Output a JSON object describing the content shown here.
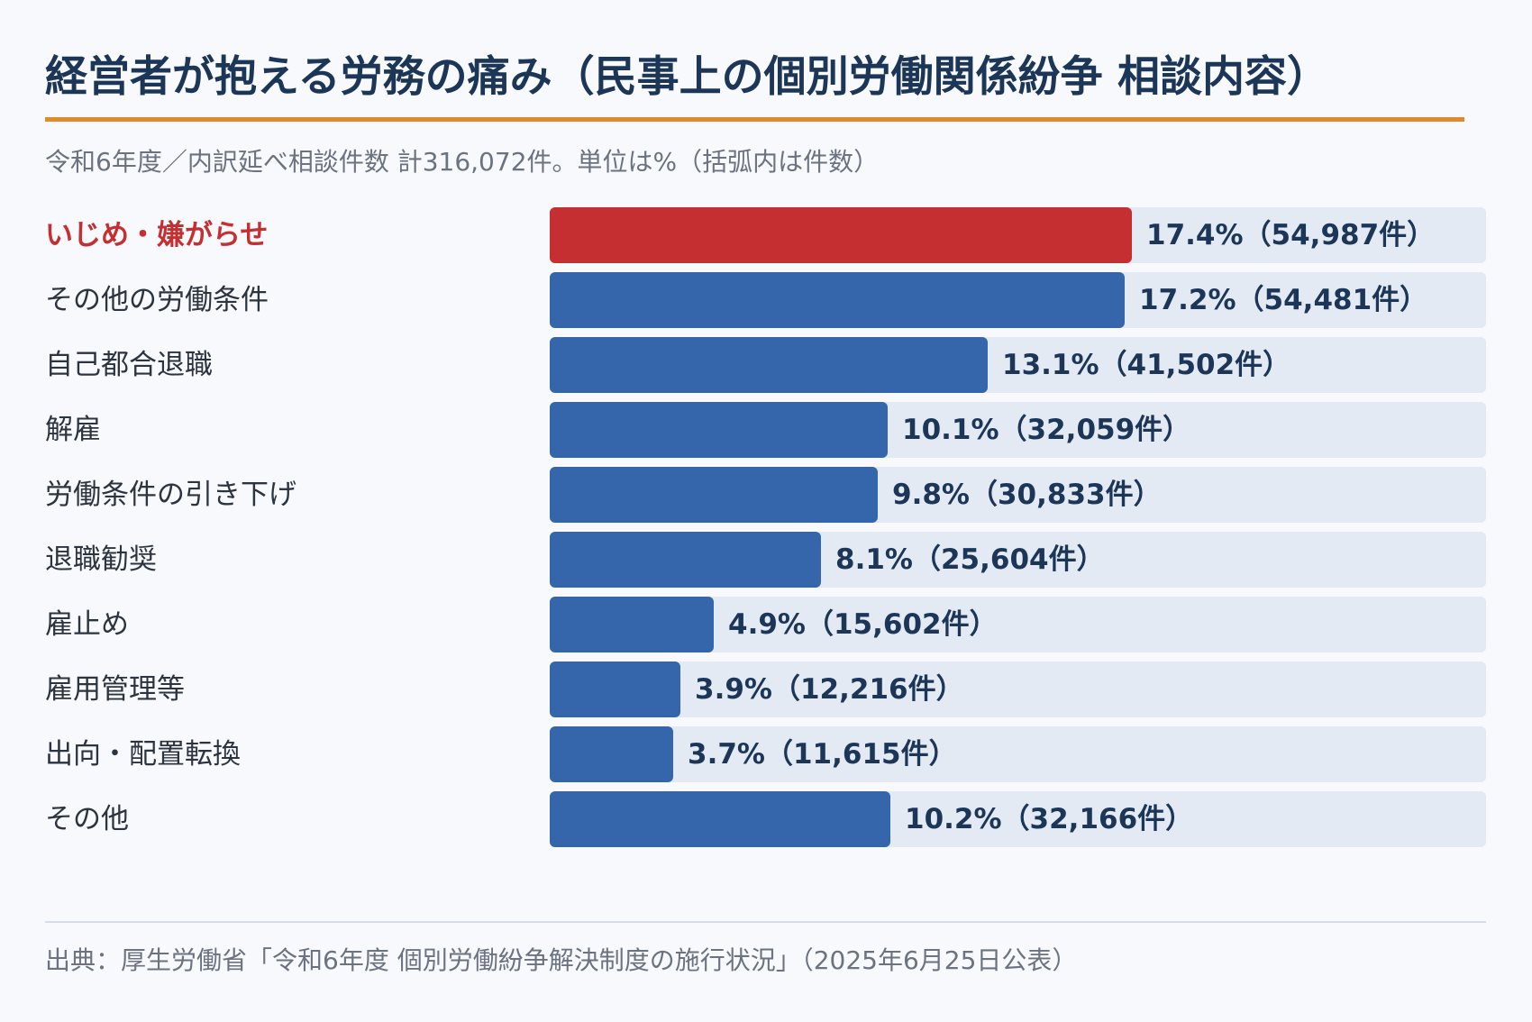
{
  "header": {
    "title": "経営者が抱える労務の痛み（民事上の個別労働関係紛争 相談内容）",
    "subtitle": "令和6年度／内訳延べ相談件数 計316,072件。単位は%（括弧内は件数）"
  },
  "footer": {
    "source": "出典：厚生労働省「令和6年度 個別労働紛争解決制度の施行状況」（2025年6月25日公表）"
  },
  "colors": {
    "highlight": "#c62f31",
    "bar": "#3566ac",
    "track": "#e3eaf3",
    "accent_rule": "#e08a2c"
  },
  "chart_data": {
    "type": "bar",
    "orientation": "horizontal",
    "title": "経営者が抱える労務の痛み（民事上の個別労働関係紛争 相談内容）",
    "unit": "%",
    "xlim": [
      0,
      28
    ],
    "grid": false,
    "legend": "none",
    "categories": [
      "いじめ・嫌がらせ",
      "その他の労働条件",
      "自己都合退職",
      "解雇",
      "労働条件の引き下げ",
      "退職勧奨",
      "雇止め",
      "雇用管理等",
      "出向・配置転換",
      "その他"
    ],
    "values": [
      17.4,
      17.2,
      13.1,
      10.1,
      9.8,
      8.1,
      4.9,
      3.9,
      3.7,
      10.2
    ],
    "counts": [
      54987,
      54481,
      41502,
      32059,
      30833,
      25604,
      15602,
      12216,
      11615,
      32166
    ],
    "value_labels": [
      "17.4%（54,987件）",
      "17.2%（54,481件）",
      "13.1%（41,502件）",
      "10.1%（32,059件）",
      "9.8%（30,833件）",
      "8.1%（25,604件）",
      "4.9%（15,602件）",
      "3.9%（12,216件）",
      "3.7%（11,615件）",
      "10.2%（32,166件）"
    ],
    "highlight_index": 0
  }
}
